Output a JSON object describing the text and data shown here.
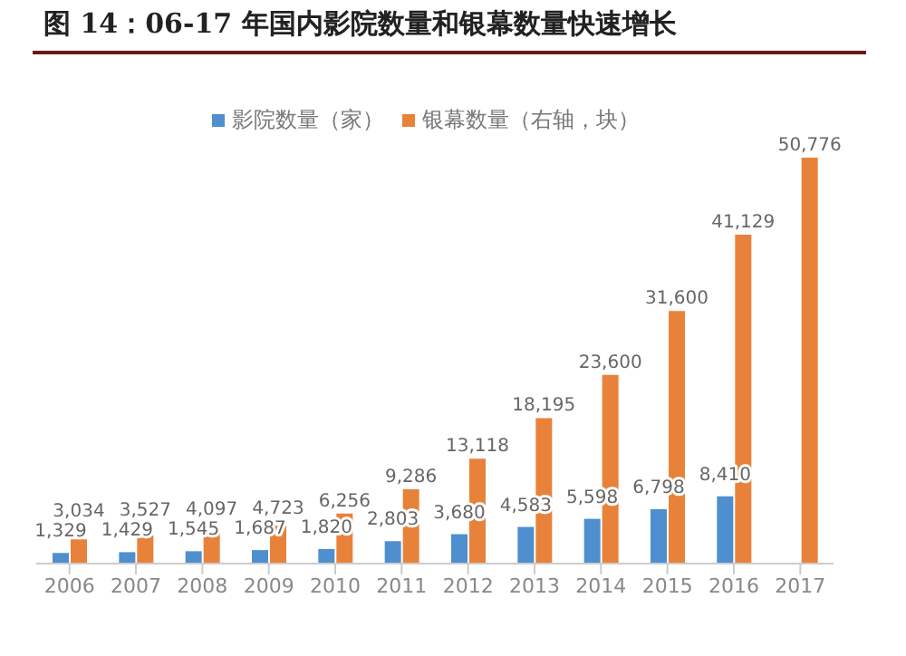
{
  "chart_data": {
    "type": "bar",
    "title": "图 14：06-17 年国内影院数量和银幕数量快速增长",
    "categories": [
      "2006",
      "2007",
      "2008",
      "2009",
      "2010",
      "2011",
      "2012",
      "2013",
      "2014",
      "2015",
      "2016",
      "2017"
    ],
    "series": [
      {
        "name": "影院数量（家）",
        "color": "#4e8fd0",
        "values": [
          1329,
          1429,
          1545,
          1687,
          1820,
          2803,
          3680,
          4583,
          5598,
          6798,
          8410,
          null
        ],
        "value_labels": [
          "1,329",
          "1,429",
          "1,545",
          "1,687",
          "1,820",
          "2,803",
          "3,680",
          "4,583",
          "5,598",
          "6,798",
          "8,410",
          null
        ]
      },
      {
        "name": "银幕数量（右轴，块）",
        "color": "#e8823a",
        "values": [
          3034,
          3527,
          4097,
          4723,
          6256,
          9286,
          13118,
          18195,
          23600,
          31600,
          41129,
          50776
        ],
        "value_labels": [
          "3,034",
          "3,527",
          "4,097",
          "4,723",
          "6,256",
          "9,286",
          "13,118",
          "18,195",
          "23,600",
          "31,600",
          "41,129",
          "50,776"
        ]
      }
    ],
    "tick_labels": "x",
    "legend": "top"
  }
}
